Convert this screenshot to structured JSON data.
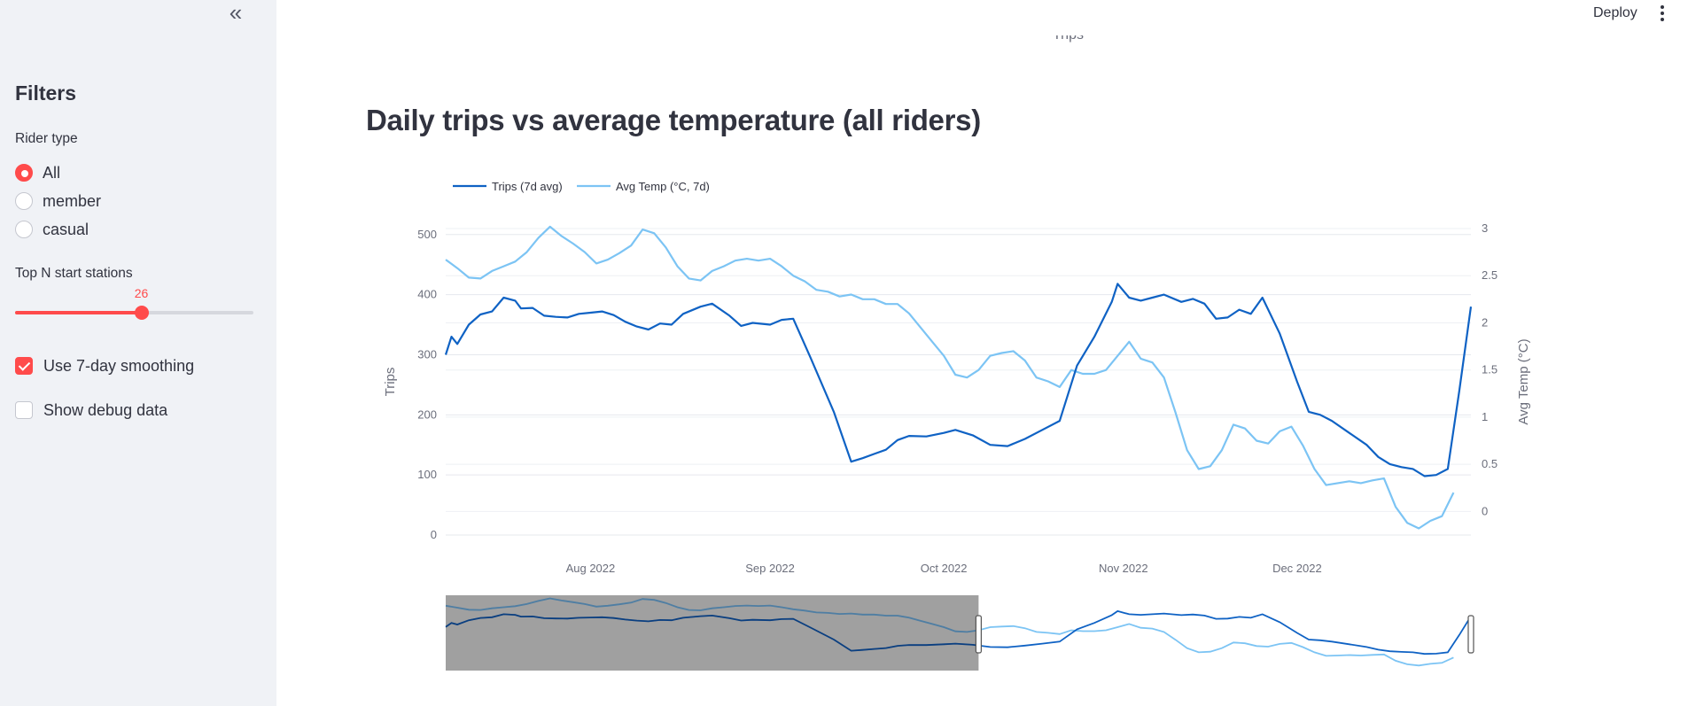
{
  "sidebar": {
    "collapse_icon": "double-chevron-left-icon",
    "collapse_glyph": "«",
    "title": "Filters",
    "rider_type": {
      "label": "Rider type",
      "options": [
        "All",
        "member",
        "casual"
      ],
      "selected": "All"
    },
    "top_n": {
      "label": "Top N start stations",
      "value": "26",
      "fraction": 0.53
    },
    "smoothing": {
      "label": "Use 7-day smoothing",
      "checked": true
    },
    "debug": {
      "label": "Show debug data",
      "checked": false
    }
  },
  "header": {
    "deploy_label": "Deploy",
    "menu_icon": "vertical-ellipsis-icon"
  },
  "main": {
    "prev_chart_axis_label": "Trips",
    "section_title": "Daily trips vs average temperature (all riders)"
  },
  "colors": {
    "accent": "#ff4b4b",
    "trips": "#0f62c4",
    "temp": "#7cc4f4",
    "sidebar_bg": "#f0f2f6"
  },
  "chart_data": {
    "type": "line",
    "title": "",
    "x_tick_labels": [
      "Aug 2022",
      "Sep 2022",
      "Oct 2022",
      "Nov 2022",
      "Dec 2022"
    ],
    "x_range": [
      "2022-07-07",
      "2022-12-31"
    ],
    "ylabel": "Trips",
    "ylim": [
      0,
      510
    ],
    "y_ticks": [
      0,
      100,
      200,
      300,
      400,
      500
    ],
    "y2label": "Avg Temp (°C)",
    "y2lim": [
      -0.25,
      3.0
    ],
    "y2_ticks": [
      "0",
      "0.5",
      "1",
      "1.5",
      "2",
      "2.5",
      "3"
    ],
    "y2_tick_values": [
      0,
      0.5,
      1,
      1.5,
      2,
      2.5,
      3
    ],
    "legend_position": "top-left",
    "grid": true,
    "range_slider": {
      "visible": true,
      "range": [
        "2022-07-07",
        "2022-10-07"
      ]
    },
    "series": [
      {
        "name": "Trips (7d avg)",
        "axis": "y",
        "color": "#0f62c4",
        "points": [
          [
            "2022-07-07",
            300
          ],
          [
            "2022-07-08",
            330
          ],
          [
            "2022-07-09",
            318
          ],
          [
            "2022-07-11",
            350
          ],
          [
            "2022-07-13",
            367
          ],
          [
            "2022-07-15",
            372
          ],
          [
            "2022-07-17",
            395
          ],
          [
            "2022-07-19",
            390
          ],
          [
            "2022-07-20",
            377
          ],
          [
            "2022-07-22",
            378
          ],
          [
            "2022-07-24",
            365
          ],
          [
            "2022-07-26",
            363
          ],
          [
            "2022-07-28",
            362
          ],
          [
            "2022-07-30",
            368
          ],
          [
            "2022-08-01",
            370
          ],
          [
            "2022-08-03",
            372
          ],
          [
            "2022-08-05",
            366
          ],
          [
            "2022-08-07",
            355
          ],
          [
            "2022-08-09",
            347
          ],
          [
            "2022-08-11",
            342
          ],
          [
            "2022-08-13",
            352
          ],
          [
            "2022-08-15",
            350
          ],
          [
            "2022-08-17",
            368
          ],
          [
            "2022-08-20",
            380
          ],
          [
            "2022-08-22",
            385
          ],
          [
            "2022-08-25",
            365
          ],
          [
            "2022-08-27",
            348
          ],
          [
            "2022-08-29",
            353
          ],
          [
            "2022-09-01",
            350
          ],
          [
            "2022-09-03",
            358
          ],
          [
            "2022-09-05",
            360
          ],
          [
            "2022-09-08",
            295
          ],
          [
            "2022-09-12",
            205
          ],
          [
            "2022-09-15",
            122
          ],
          [
            "2022-09-17",
            128
          ],
          [
            "2022-09-19",
            135
          ],
          [
            "2022-09-21",
            142
          ],
          [
            "2022-09-23",
            158
          ],
          [
            "2022-09-25",
            165
          ],
          [
            "2022-09-28",
            164
          ],
          [
            "2022-10-01",
            170
          ],
          [
            "2022-10-03",
            175
          ],
          [
            "2022-10-06",
            166
          ],
          [
            "2022-10-09",
            150
          ],
          [
            "2022-10-12",
            148
          ],
          [
            "2022-10-15",
            160
          ],
          [
            "2022-10-18",
            175
          ],
          [
            "2022-10-21",
            190
          ],
          [
            "2022-10-24",
            282
          ],
          [
            "2022-10-27",
            330
          ],
          [
            "2022-10-30",
            388
          ],
          [
            "2022-10-31",
            418
          ],
          [
            "2022-11-02",
            395
          ],
          [
            "2022-11-04",
            390
          ],
          [
            "2022-11-06",
            395
          ],
          [
            "2022-11-08",
            400
          ],
          [
            "2022-11-11",
            388
          ],
          [
            "2022-11-13",
            393
          ],
          [
            "2022-11-15",
            385
          ],
          [
            "2022-11-17",
            360
          ],
          [
            "2022-11-19",
            362
          ],
          [
            "2022-11-21",
            375
          ],
          [
            "2022-11-23",
            368
          ],
          [
            "2022-11-25",
            395
          ],
          [
            "2022-11-28",
            335
          ],
          [
            "2022-12-01",
            255
          ],
          [
            "2022-12-03",
            205
          ],
          [
            "2022-12-05",
            200
          ],
          [
            "2022-12-07",
            190
          ],
          [
            "2022-12-10",
            170
          ],
          [
            "2022-12-13",
            150
          ],
          [
            "2022-12-15",
            130
          ],
          [
            "2022-12-17",
            118
          ],
          [
            "2022-12-19",
            113
          ],
          [
            "2022-12-21",
            110
          ],
          [
            "2022-12-23",
            98
          ],
          [
            "2022-12-25",
            100
          ],
          [
            "2022-12-27",
            110
          ],
          [
            "2022-12-29",
            240
          ],
          [
            "2022-12-31",
            380
          ]
        ]
      },
      {
        "name": "Avg Temp (°C, 7d)",
        "axis": "y2",
        "color": "#7cc4f4",
        "points": [
          [
            "2022-07-07",
            2.67
          ],
          [
            "2022-07-09",
            2.58
          ],
          [
            "2022-07-11",
            2.48
          ],
          [
            "2022-07-13",
            2.47
          ],
          [
            "2022-07-15",
            2.55
          ],
          [
            "2022-07-17",
            2.6
          ],
          [
            "2022-07-19",
            2.65
          ],
          [
            "2022-07-21",
            2.75
          ],
          [
            "2022-07-23",
            2.9
          ],
          [
            "2022-07-25",
            3.02
          ],
          [
            "2022-07-27",
            2.92
          ],
          [
            "2022-07-29",
            2.84
          ],
          [
            "2022-07-31",
            2.75
          ],
          [
            "2022-08-02",
            2.63
          ],
          [
            "2022-08-04",
            2.67
          ],
          [
            "2022-08-06",
            2.74
          ],
          [
            "2022-08-08",
            2.82
          ],
          [
            "2022-08-10",
            2.99
          ],
          [
            "2022-08-12",
            2.95
          ],
          [
            "2022-08-14",
            2.8
          ],
          [
            "2022-08-16",
            2.6
          ],
          [
            "2022-08-18",
            2.47
          ],
          [
            "2022-08-20",
            2.45
          ],
          [
            "2022-08-22",
            2.55
          ],
          [
            "2022-08-24",
            2.6
          ],
          [
            "2022-08-26",
            2.66
          ],
          [
            "2022-08-28",
            2.68
          ],
          [
            "2022-08-30",
            2.66
          ],
          [
            "2022-09-01",
            2.68
          ],
          [
            "2022-09-03",
            2.6
          ],
          [
            "2022-09-05",
            2.5
          ],
          [
            "2022-09-07",
            2.44
          ],
          [
            "2022-09-09",
            2.35
          ],
          [
            "2022-09-11",
            2.33
          ],
          [
            "2022-09-13",
            2.28
          ],
          [
            "2022-09-15",
            2.3
          ],
          [
            "2022-09-17",
            2.25
          ],
          [
            "2022-09-19",
            2.25
          ],
          [
            "2022-09-21",
            2.2
          ],
          [
            "2022-09-23",
            2.2
          ],
          [
            "2022-09-25",
            2.1
          ],
          [
            "2022-09-27",
            1.95
          ],
          [
            "2022-09-29",
            1.8
          ],
          [
            "2022-10-01",
            1.65
          ],
          [
            "2022-10-03",
            1.45
          ],
          [
            "2022-10-05",
            1.42
          ],
          [
            "2022-10-07",
            1.5
          ],
          [
            "2022-10-09",
            1.65
          ],
          [
            "2022-10-11",
            1.68
          ],
          [
            "2022-10-13",
            1.7
          ],
          [
            "2022-10-15",
            1.6
          ],
          [
            "2022-10-17",
            1.42
          ],
          [
            "2022-10-19",
            1.38
          ],
          [
            "2022-10-21",
            1.32
          ],
          [
            "2022-10-23",
            1.5
          ],
          [
            "2022-10-25",
            1.46
          ],
          [
            "2022-10-27",
            1.46
          ],
          [
            "2022-10-29",
            1.5
          ],
          [
            "2022-10-31",
            1.65
          ],
          [
            "2022-11-02",
            1.8
          ],
          [
            "2022-11-04",
            1.62
          ],
          [
            "2022-11-06",
            1.58
          ],
          [
            "2022-11-08",
            1.42
          ],
          [
            "2022-11-10",
            1.05
          ],
          [
            "2022-11-12",
            0.65
          ],
          [
            "2022-11-14",
            0.45
          ],
          [
            "2022-11-16",
            0.48
          ],
          [
            "2022-11-18",
            0.65
          ],
          [
            "2022-11-20",
            0.92
          ],
          [
            "2022-11-22",
            0.88
          ],
          [
            "2022-11-24",
            0.75
          ],
          [
            "2022-11-26",
            0.72
          ],
          [
            "2022-11-28",
            0.85
          ],
          [
            "2022-11-30",
            0.9
          ],
          [
            "2022-12-02",
            0.7
          ],
          [
            "2022-12-04",
            0.45
          ],
          [
            "2022-12-06",
            0.28
          ],
          [
            "2022-12-08",
            0.3
          ],
          [
            "2022-12-10",
            0.32
          ],
          [
            "2022-12-12",
            0.3
          ],
          [
            "2022-12-14",
            0.33
          ],
          [
            "2022-12-16",
            0.35
          ],
          [
            "2022-12-18",
            0.05
          ],
          [
            "2022-12-20",
            -0.12
          ],
          [
            "2022-12-22",
            -0.18
          ],
          [
            "2022-12-24",
            -0.1
          ],
          [
            "2022-12-26",
            -0.05
          ],
          [
            "2022-12-28",
            0.2
          ]
        ]
      }
    ]
  }
}
